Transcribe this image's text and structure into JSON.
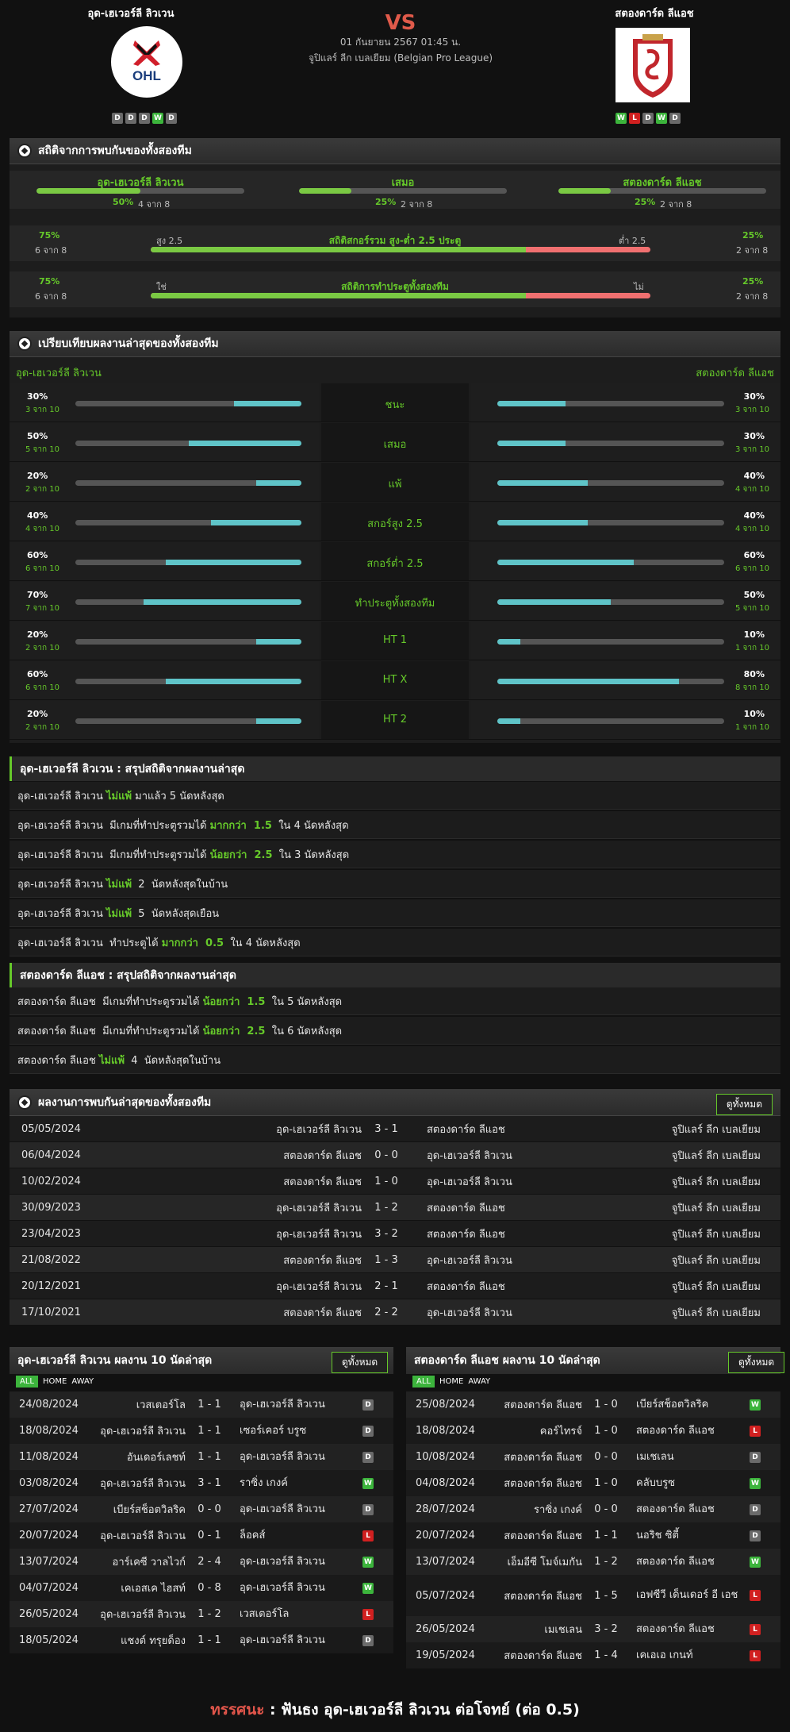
{
  "header": {
    "home": "อุด-เฮเวอร์ลี ลิวเวน",
    "away": "สตองดาร์ด ลีแอช",
    "vs": "VS",
    "date": "01 กันยายน 2567 01:45 น.",
    "league": "จูปิแลร์ ลีก เบลเยียม (Belgian Pro League)",
    "home_logo_text": "OHL",
    "home_form": [
      "D",
      "D",
      "D",
      "W",
      "D"
    ],
    "away_form": [
      "W",
      "L",
      "D",
      "W",
      "D"
    ]
  },
  "h2h_stats": {
    "title": "สถิติจากการพบกันของทั้งสองทีม",
    "cols": [
      {
        "label": "อุด-เฮเวอร์ลี ลิวเวน",
        "pct": "50%",
        "count": "4 จาก 8",
        "fill": 0.5
      },
      {
        "label": "เสมอ",
        "pct": "25%",
        "count": "2 จาก 8",
        "fill": 0.25
      },
      {
        "label": "สตองดาร์ด ลีแอช",
        "pct": "25%",
        "count": "2 จาก 8",
        "fill": 0.25
      }
    ],
    "ou": {
      "lpct": "75%",
      "lcount": "6 จาก 8",
      "left": "สูง 2.5",
      "label": "สถิติสกอร์รวม สูง-ต่ำ 2.5 ประตู",
      "right": "ต่ำ 2.5",
      "rpct": "25%",
      "rcount": "2 จาก 8",
      "fill": 0.75
    },
    "btts": {
      "lpct": "75%",
      "lcount": "6 จาก 8",
      "left": "ใช่",
      "label": "สถิติการทำประตูทั้งสองทีม",
      "right": "ไม่",
      "rpct": "25%",
      "rcount": "2 จาก 8",
      "fill": 0.75
    }
  },
  "compare": {
    "title": "เปรียบเทียบผลงานล่าสุดของทั้งสองทีม",
    "home": "อุด-เฮเวอร์ลี ลิวเวน",
    "away": "สตองดาร์ด ลีแอช",
    "rows": [
      {
        "label": "ชนะ",
        "hp": "30%",
        "hc": "3 จาก 10",
        "hv": 0.3,
        "ap": "30%",
        "ac": "3 จาก 10",
        "av": 0.3
      },
      {
        "label": "เสมอ",
        "hp": "50%",
        "hc": "5 จาก 10",
        "hv": 0.5,
        "ap": "30%",
        "ac": "3 จาก 10",
        "av": 0.3
      },
      {
        "label": "แพ้",
        "hp": "20%",
        "hc": "2 จาก 10",
        "hv": 0.2,
        "ap": "40%",
        "ac": "4 จาก 10",
        "av": 0.4
      },
      {
        "label": "สกอร์สูง 2.5",
        "hp": "40%",
        "hc": "4 จาก 10",
        "hv": 0.4,
        "ap": "40%",
        "ac": "4 จาก 10",
        "av": 0.4
      },
      {
        "label": "สกอร์ต่ำ 2.5",
        "hp": "60%",
        "hc": "6 จาก 10",
        "hv": 0.6,
        "ap": "60%",
        "ac": "6 จาก 10",
        "av": 0.6
      },
      {
        "label": "ทำประตูทั้งสองทีม",
        "hp": "70%",
        "hc": "7 จาก 10",
        "hv": 0.7,
        "ap": "50%",
        "ac": "5 จาก 10",
        "av": 0.5
      },
      {
        "label": "HT 1",
        "hp": "20%",
        "hc": "2 จาก 10",
        "hv": 0.2,
        "ap": "10%",
        "ac": "1 จาก 10",
        "av": 0.1
      },
      {
        "label": "HT X",
        "hp": "60%",
        "hc": "6 จาก 10",
        "hv": 0.6,
        "ap": "80%",
        "ac": "8 จาก 10",
        "av": 0.8
      },
      {
        "label": "HT 2",
        "hp": "20%",
        "hc": "2 จาก 10",
        "hv": 0.2,
        "ap": "10%",
        "ac": "1 จาก 10",
        "av": 0.1
      }
    ]
  },
  "home_summary": {
    "title": "อุด-เฮเวอร์ลี ลิวเวน : สรุปสถิติจากผลงานล่าสุด",
    "rows": [
      [
        "อุด-เฮเวอร์ลี ลิวเวน ",
        "ไม่แพ้",
        " มาแล้ว 5 นัดหลังสุด"
      ],
      [
        "อุด-เฮเวอร์ลี ลิวเวน  มีเกมที่ทำประตูรวมได้ ",
        "มากกว่า  1.5",
        "  ใน 4 นัดหลังสุด"
      ],
      [
        "อุด-เฮเวอร์ลี ลิวเวน  มีเกมที่ทำประตูรวมได้ ",
        "น้อยกว่า  2.5",
        "  ใน 3 นัดหลังสุด"
      ],
      [
        "อุด-เฮเวอร์ลี ลิวเวน ",
        "ไม่แพ้",
        "  2  นัดหลังสุดในบ้าน"
      ],
      [
        "อุด-เฮเวอร์ลี ลิวเวน ",
        "ไม่แพ้",
        "  5  นัดหลังสุดเยือน"
      ],
      [
        "อุด-เฮเวอร์ลี ลิวเวน  ทำประตูได้ ",
        "มากกว่า  0.5",
        "  ใน 4 นัดหลังสุด"
      ]
    ]
  },
  "away_summary": {
    "title": "สตองดาร์ด ลีแอช : สรุปสถิติจากผลงานล่าสุด",
    "rows": [
      [
        "สตองดาร์ด ลีแอช  มีเกมที่ทำประตูรวมได้ ",
        "น้อยกว่า  1.5",
        "  ใน 5 นัดหลังสุด"
      ],
      [
        "สตองดาร์ด ลีแอช  มีเกมที่ทำประตูรวมได้ ",
        "น้อยกว่า  2.5",
        "  ใน 6 นัดหลังสุด"
      ],
      [
        "สตองดาร์ด ลีแอช ",
        "ไม่แพ้",
        "  4  นัดหลังสุดในบ้าน"
      ]
    ]
  },
  "h2h_results": {
    "title": "ผลงานการพบกันล่าสุดของทั้งสองทีม",
    "button": "ดูทั้งหมด",
    "rows": [
      [
        "05/05/2024",
        "อุด-เฮเวอร์ลี ลิวเวน",
        "3 - 1",
        "สตองดาร์ด ลีแอช",
        "จูปิแลร์ ลีก เบลเยียม"
      ],
      [
        "06/04/2024",
        "สตองดาร์ด ลีแอช",
        "0 - 0",
        "อุด-เฮเวอร์ลี ลิวเวน",
        "จูปิแลร์ ลีก เบลเยียม"
      ],
      [
        "10/02/2024",
        "สตองดาร์ด ลีแอช",
        "1 - 0",
        "อุด-เฮเวอร์ลี ลิวเวน",
        "จูปิแลร์ ลีก เบลเยียม"
      ],
      [
        "30/09/2023",
        "อุด-เฮเวอร์ลี ลิวเวน",
        "1 - 2",
        "สตองดาร์ด ลีแอช",
        "จูปิแลร์ ลีก เบลเยียม"
      ],
      [
        "23/04/2023",
        "อุด-เฮเวอร์ลี ลิวเวน",
        "3 - 2",
        "สตองดาร์ด ลีแอช",
        "จูปิแลร์ ลีก เบลเยียม"
      ],
      [
        "21/08/2022",
        "สตองดาร์ด ลีแอช",
        "1 - 3",
        "อุด-เฮเวอร์ลี ลิวเวน",
        "จูปิแลร์ ลีก เบลเยียม"
      ],
      [
        "20/12/2021",
        "อุด-เฮเวอร์ลี ลิวเวน",
        "2 - 1",
        "สตองดาร์ด ลีแอช",
        "จูปิแลร์ ลีก เบลเยียม"
      ],
      [
        "17/10/2021",
        "สตองดาร์ด ลีแอช",
        "2 - 2",
        "อุด-เฮเวอร์ลี ลิวเวน",
        "จูปิแลร์ ลีก เบลเยียม"
      ]
    ]
  },
  "home_last10": {
    "title": "อุด-เฮเวอร์ลี ลิวเวน ผลงาน 10 นัดล่าสุด",
    "button": "ดูทั้งหมด",
    "tabs": [
      "ALL",
      "HOME",
      "AWAY"
    ],
    "rows": [
      [
        "24/08/2024",
        "เวสเตอร์โล",
        "1 - 1",
        "อุด-เฮเวอร์ลี ลิวเวน",
        "D"
      ],
      [
        "18/08/2024",
        "อุด-เฮเวอร์ลี ลิวเวน",
        "1 - 1",
        "เซอร์เคอร์ บรูซ",
        "D"
      ],
      [
        "11/08/2024",
        "อันเดอร์เลชท์",
        "1 - 1",
        "อุด-เฮเวอร์ลี ลิวเวน",
        "D"
      ],
      [
        "03/08/2024",
        "อุด-เฮเวอร์ลี ลิวเวน",
        "3 - 1",
        "ราซิ่ง เกงค์",
        "W"
      ],
      [
        "27/07/2024",
        "เบียร์สช็อตวิลริค",
        "0 - 0",
        "อุด-เฮเวอร์ลี ลิวเวน",
        "D"
      ],
      [
        "20/07/2024",
        "อุด-เฮเวอร์ลี ลิวเวน",
        "0 - 1",
        "ล็อคส์",
        "L"
      ],
      [
        "13/07/2024",
        "อาร์เคซี วาลไวก์",
        "2 - 4",
        "อุด-เฮเวอร์ลี ลิวเวน",
        "W"
      ],
      [
        "04/07/2024",
        "เคเอสเค ไฮสท์",
        "0 - 8",
        "อุด-เฮเวอร์ลี ลิวเวน",
        "W"
      ],
      [
        "26/05/2024",
        "อุด-เฮเวอร์ลี ลิวเวน",
        "1 - 2",
        "เวสเตอร์โล",
        "L"
      ],
      [
        "18/05/2024",
        "แชงต์ ทรุยด็อง",
        "1 - 1",
        "อุด-เฮเวอร์ลี ลิวเวน",
        "D"
      ]
    ]
  },
  "away_last10": {
    "title": "สตองดาร์ด ลีแอช ผลงาน 10 นัดล่าสุด",
    "button": "ดูทั้งหมด",
    "tabs": [
      "ALL",
      "HOME",
      "AWAY"
    ],
    "rows": [
      [
        "25/08/2024",
        "สตองดาร์ด ลีแอช",
        "1 - 0",
        "เบียร์สช็อตวิลริค",
        "W"
      ],
      [
        "18/08/2024",
        "คอร์ไทรจ์",
        "1 - 0",
        "สตองดาร์ด ลีแอช",
        "L"
      ],
      [
        "10/08/2024",
        "สตองดาร์ด ลีแอช",
        "0 - 0",
        "เมเชเลน",
        "D"
      ],
      [
        "04/08/2024",
        "สตองดาร์ด ลีแอช",
        "1 - 0",
        "คลับบรูซ",
        "W"
      ],
      [
        "28/07/2024",
        "ราซิ่ง เกงค์",
        "0 - 0",
        "สตองดาร์ด ลีแอช",
        "D"
      ],
      [
        "20/07/2024",
        "สตองดาร์ด ลีแอช",
        "1 - 1",
        "นอริช ซิตี้",
        "D"
      ],
      [
        "13/07/2024",
        "เอ็มอีซี โมจ์เมกัน",
        "1 - 2",
        "สตองดาร์ด ลีแอช",
        "W"
      ],
      [
        "05/07/2024",
        "สตองดาร์ด ลีแอช",
        "1 - 5",
        "เอฟซีวี เด็นเดอร์ อี เอช",
        "L"
      ],
      [
        "26/05/2024",
        "เมเชเลน",
        "3 - 2",
        "สตองดาร์ด ลีแอช",
        "L"
      ],
      [
        "19/05/2024",
        "สตองดาร์ด ลีแอช",
        "1 - 4",
        "เคเอเอ เกนท์",
        "L"
      ]
    ]
  },
  "prediction": {
    "label": "ทรรศนะ",
    "sep": " :  ",
    "text": "ฟันธง อุด-เฮเวอร์ลี ลิวเวน ต่อโจทย์ (ต่อ 0.5)"
  }
}
